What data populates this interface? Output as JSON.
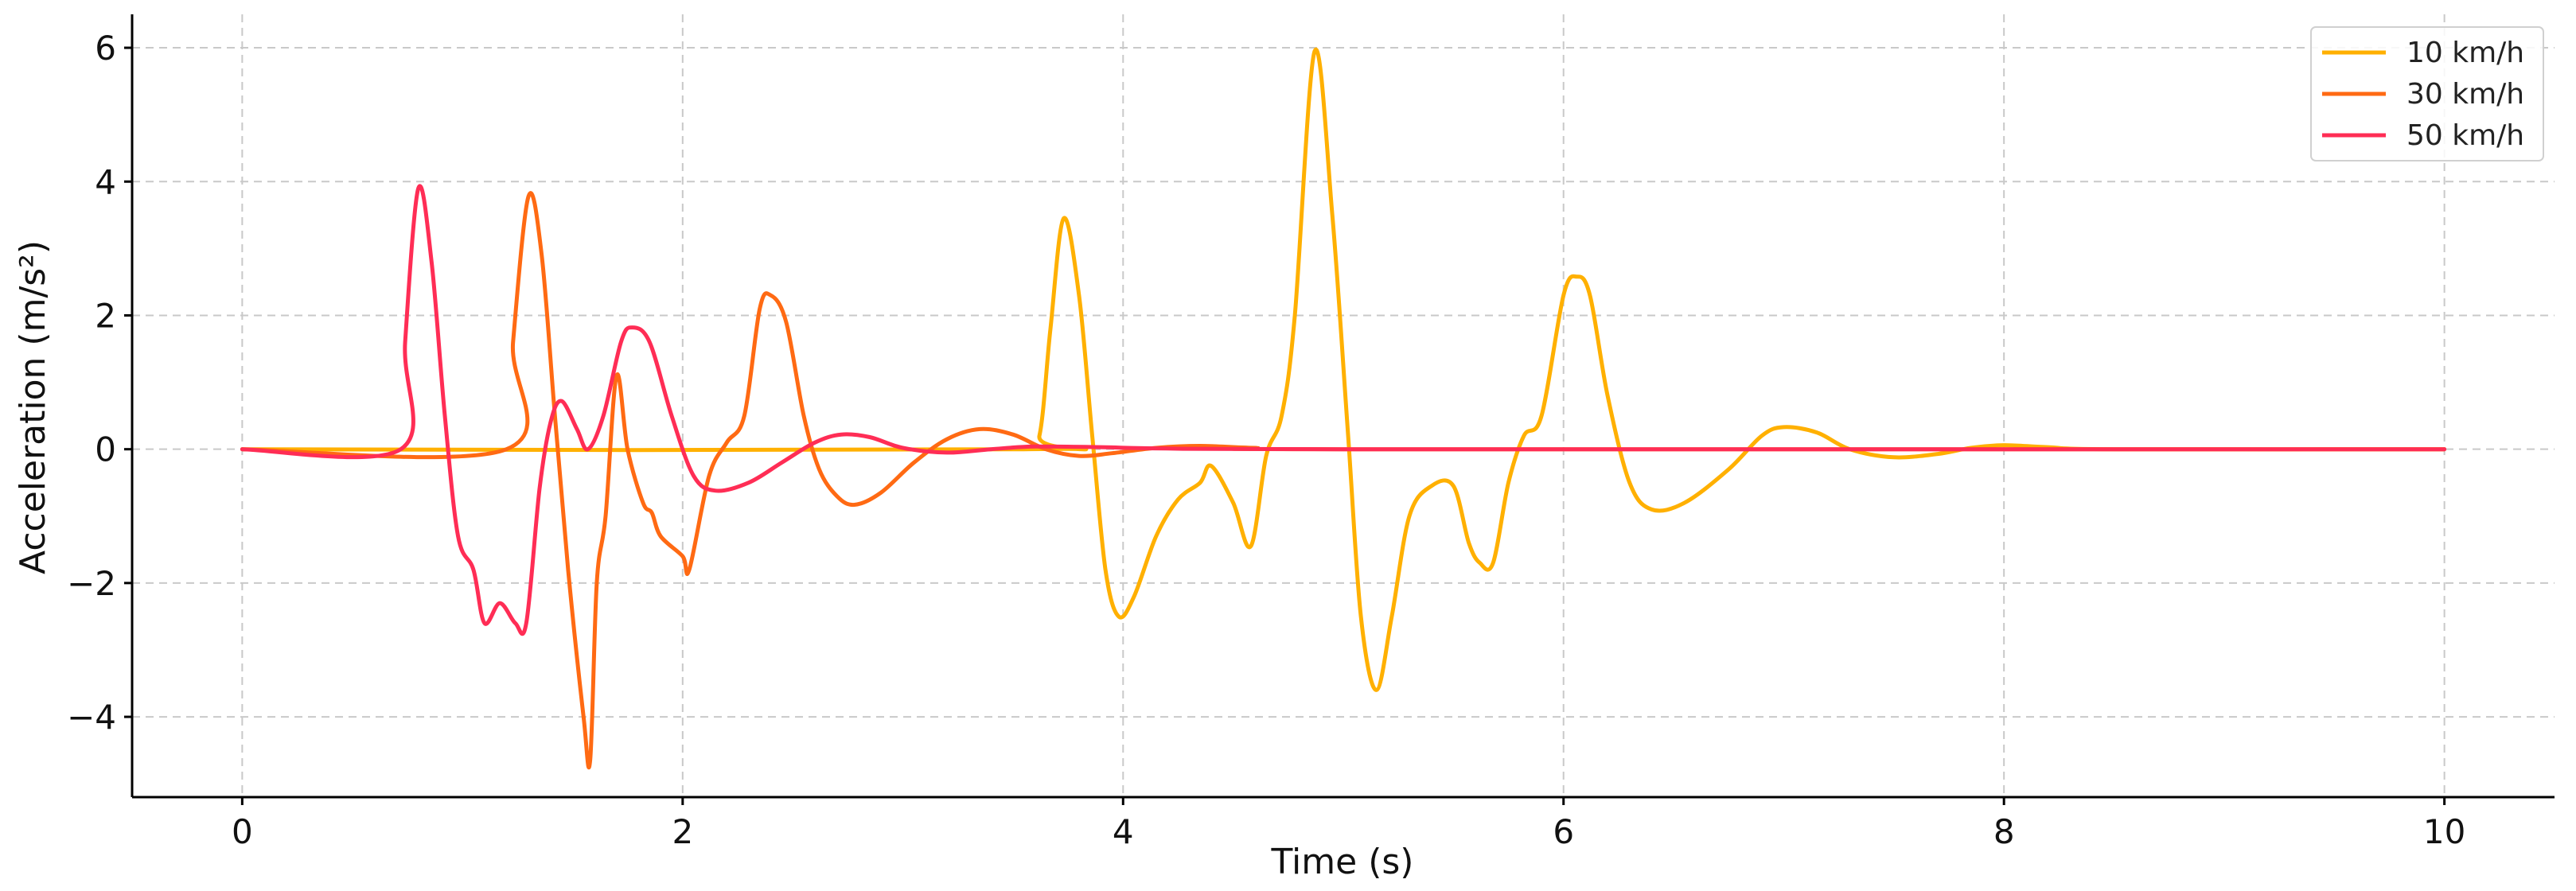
{
  "chart_data": {
    "type": "line",
    "title": "",
    "xlabel": "Time (s)",
    "ylabel": "Acceleration (m/s²)",
    "xlim": [
      -0.5,
      10.5
    ],
    "ylim": [
      -5.2,
      6.5
    ],
    "xticks": [
      0,
      2,
      4,
      6,
      8,
      10
    ],
    "yticks": [
      -4,
      -2,
      0,
      2,
      4,
      6
    ],
    "xtick_labels": [
      "0",
      "2",
      "4",
      "6",
      "8",
      "10"
    ],
    "ytick_labels": [
      "−4",
      "−2",
      "0",
      "2",
      "4",
      "6"
    ],
    "grid": true,
    "legend_position": "top-right",
    "series": [
      {
        "name": "10 km/h",
        "color": "#FFB000",
        "points": [
          [
            0,
            0
          ],
          [
            3.55,
            0
          ],
          [
            3.62,
            0.2
          ],
          [
            3.67,
            1.8
          ],
          [
            3.73,
            3.45
          ],
          [
            3.8,
            2.3
          ],
          [
            3.86,
            0.2
          ],
          [
            3.92,
            -1.8
          ],
          [
            3.98,
            -2.5
          ],
          [
            4.05,
            -2.2
          ],
          [
            4.15,
            -1.3
          ],
          [
            4.25,
            -0.75
          ],
          [
            4.35,
            -0.5
          ],
          [
            4.4,
            -0.25
          ],
          [
            4.5,
            -0.8
          ],
          [
            4.58,
            -1.45
          ],
          [
            4.65,
            -0.1
          ],
          [
            4.72,
            0.5
          ],
          [
            4.78,
            2.0
          ],
          [
            4.87,
            5.95
          ],
          [
            4.95,
            3.5
          ],
          [
            5.02,
            0.3
          ],
          [
            5.08,
            -2.5
          ],
          [
            5.15,
            -3.6
          ],
          [
            5.22,
            -2.5
          ],
          [
            5.3,
            -1.0
          ],
          [
            5.4,
            -0.55
          ],
          [
            5.5,
            -0.55
          ],
          [
            5.57,
            -1.4
          ],
          [
            5.62,
            -1.7
          ],
          [
            5.68,
            -1.7
          ],
          [
            5.75,
            -0.5
          ],
          [
            5.82,
            0.2
          ],
          [
            5.9,
            0.5
          ],
          [
            6.0,
            2.3
          ],
          [
            6.06,
            2.58
          ],
          [
            6.12,
            2.3
          ],
          [
            6.2,
            0.8
          ],
          [
            6.3,
            -0.5
          ],
          [
            6.4,
            -0.9
          ],
          [
            6.55,
            -0.8
          ],
          [
            6.75,
            -0.3
          ],
          [
            6.9,
            0.2
          ],
          [
            7.0,
            0.33
          ],
          [
            7.15,
            0.25
          ],
          [
            7.3,
            0.0
          ],
          [
            7.5,
            -0.12
          ],
          [
            7.7,
            -0.07
          ],
          [
            7.85,
            0.02
          ],
          [
            8.0,
            0.06
          ],
          [
            8.2,
            0.03
          ],
          [
            8.5,
            0.0
          ],
          [
            10,
            0
          ]
        ]
      },
      {
        "name": "30 km/h",
        "color": "#FF6A13",
        "points": [
          [
            0,
            0
          ],
          [
            1.2,
            0
          ],
          [
            1.23,
            1.6
          ],
          [
            1.3,
            3.78
          ],
          [
            1.36,
            2.9
          ],
          [
            1.42,
            0.5
          ],
          [
            1.48,
            -1.8
          ],
          [
            1.55,
            -4.0
          ],
          [
            1.58,
            -4.65
          ],
          [
            1.61,
            -2.0
          ],
          [
            1.65,
            -1.0
          ],
          [
            1.7,
            1.1
          ],
          [
            1.75,
            0.0
          ],
          [
            1.82,
            -0.8
          ],
          [
            1.86,
            -0.95
          ],
          [
            1.9,
            -1.3
          ],
          [
            2.0,
            -1.6
          ],
          [
            2.03,
            -1.8
          ],
          [
            2.12,
            -0.4
          ],
          [
            2.2,
            0.1
          ],
          [
            2.28,
            0.5
          ],
          [
            2.35,
            2.1
          ],
          [
            2.4,
            2.3
          ],
          [
            2.47,
            1.9
          ],
          [
            2.55,
            0.5
          ],
          [
            2.62,
            -0.3
          ],
          [
            2.7,
            -0.7
          ],
          [
            2.78,
            -0.83
          ],
          [
            2.9,
            -0.65
          ],
          [
            3.05,
            -0.2
          ],
          [
            3.2,
            0.15
          ],
          [
            3.35,
            0.3
          ],
          [
            3.5,
            0.22
          ],
          [
            3.65,
            0.0
          ],
          [
            3.8,
            -0.1
          ],
          [
            3.95,
            -0.06
          ],
          [
            4.15,
            0.02
          ],
          [
            4.35,
            0.05
          ],
          [
            4.6,
            0.02
          ],
          [
            5.0,
            0.0
          ],
          [
            10,
            0
          ]
        ]
      },
      {
        "name": "50 km/h",
        "color": "#FF2D55",
        "points": [
          [
            0,
            0
          ],
          [
            0.72,
            0
          ],
          [
            0.74,
            1.6
          ],
          [
            0.8,
            3.9
          ],
          [
            0.86,
            2.8
          ],
          [
            0.92,
            0.5
          ],
          [
            0.98,
            -1.3
          ],
          [
            1.05,
            -1.8
          ],
          [
            1.1,
            -2.6
          ],
          [
            1.17,
            -2.3
          ],
          [
            1.24,
            -2.6
          ],
          [
            1.29,
            -2.6
          ],
          [
            1.35,
            -0.6
          ],
          [
            1.4,
            0.4
          ],
          [
            1.45,
            0.72
          ],
          [
            1.52,
            0.3
          ],
          [
            1.57,
            0.0
          ],
          [
            1.64,
            0.5
          ],
          [
            1.72,
            1.6
          ],
          [
            1.77,
            1.82
          ],
          [
            1.85,
            1.6
          ],
          [
            1.95,
            0.5
          ],
          [
            2.05,
            -0.4
          ],
          [
            2.15,
            -0.62
          ],
          [
            2.3,
            -0.5
          ],
          [
            2.45,
            -0.2
          ],
          [
            2.6,
            0.1
          ],
          [
            2.72,
            0.22
          ],
          [
            2.85,
            0.18
          ],
          [
            3.0,
            0.02
          ],
          [
            3.2,
            -0.05
          ],
          [
            3.4,
            0.0
          ],
          [
            3.6,
            0.04
          ],
          [
            3.9,
            0.03
          ],
          [
            4.2,
            0.01
          ],
          [
            5.0,
            0.0
          ],
          [
            10,
            0
          ]
        ]
      }
    ]
  }
}
